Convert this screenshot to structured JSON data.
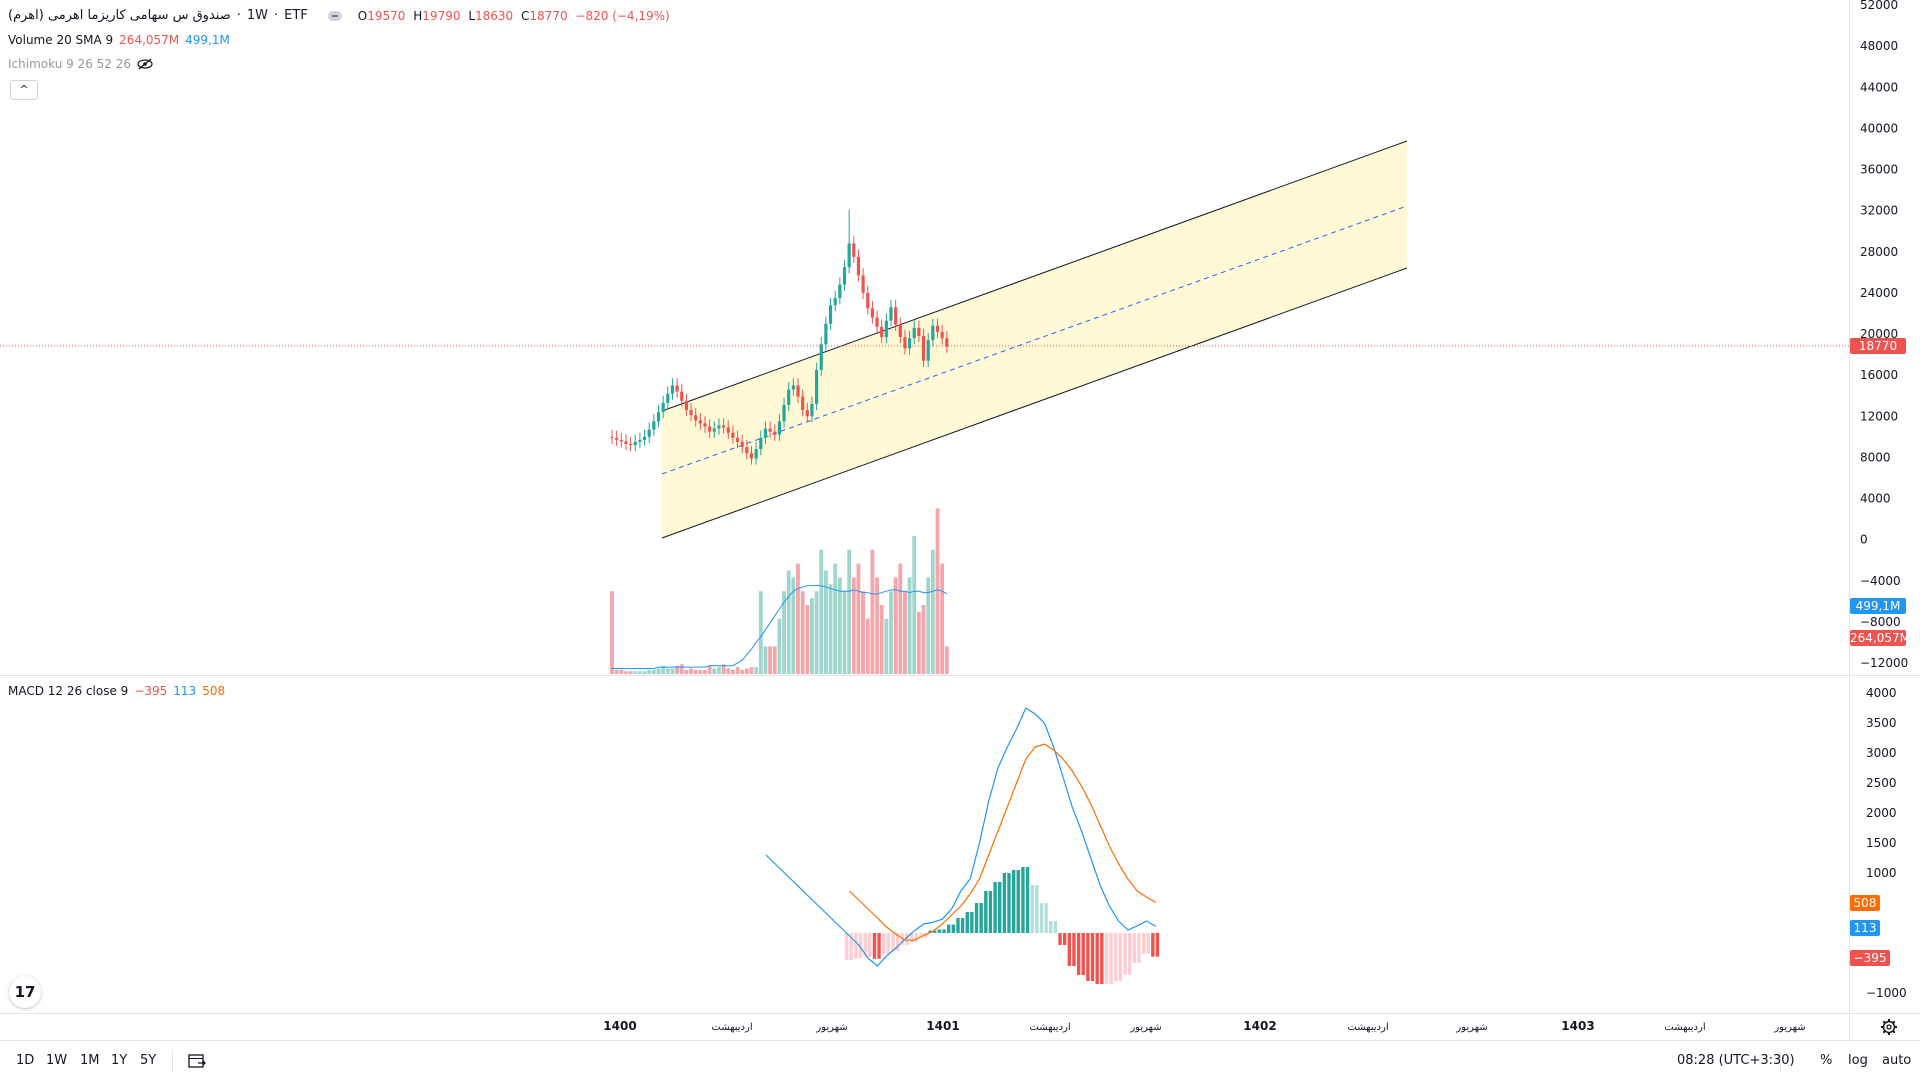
{
  "legend": {
    "symbol": "صندوق س سهامی کاریزما اهرمی (اهرم)",
    "sep": " · ",
    "interval": "1W",
    "exchange": "ETF",
    "ohlc": {
      "O_label": "O",
      "O": "19570",
      "H_label": "H",
      "H": "19790",
      "L_label": "L",
      "L": "18630",
      "C_label": "C",
      "C": "18770",
      "change": "−820 (−4,19%)"
    },
    "volume_name": "Volume 20 SMA 9",
    "volume_val": "264,057M",
    "volume_sma": "499,1M",
    "ichimoku": "Ichimoku 9 26 52 26",
    "macd_name": "MACD 12 26 close 9",
    "macd_hist": "−395",
    "macd_line": "113",
    "macd_signal": "508"
  },
  "colors": {
    "up": "#26a69a",
    "down": "#ef5350",
    "vol_up": "#9fd6cc",
    "vol_down": "#f6a5ab",
    "channel_fill": "#fff9d6",
    "macd_line": "#2196f3",
    "signal_line": "#ff6d00"
  },
  "price_axis": [
    "52000",
    "48000",
    "44000",
    "40000",
    "36000",
    "32000",
    "28000",
    "24000",
    "20000",
    "16000",
    "12000",
    "8000",
    "4000",
    "0",
    "−4000",
    "−8000",
    "−12000"
  ],
  "price_tags": {
    "last": "18770",
    "vol_sma": "499,1M",
    "vol": "264,057M"
  },
  "macd_axis": [
    "4000",
    "3500",
    "3000",
    "2500",
    "2000",
    "1500",
    "1000",
    "−1000"
  ],
  "macd_tags": {
    "signal": "508",
    "macd": "113",
    "hist": "−395"
  },
  "time_axis": [
    "1400",
    "اردیبهشت",
    "شهریور",
    "1401",
    "اردیبهشت",
    "شهریور",
    "1402",
    "اردیبهشت",
    "شهریور",
    "1403",
    "اردیبهشت",
    "شهریور"
  ],
  "bottom": {
    "timeframes": [
      "1D",
      "1W",
      "1M",
      "1Y",
      "5Y"
    ],
    "clock": "08:28 (UTC+3:30)",
    "percent": "%",
    "log": "log",
    "auto": "auto"
  },
  "logo_text": "17",
  "chart_data": [
    {
      "type": "candlestick",
      "title": "",
      "x_unit": "week index (1400 = week 0)",
      "ylim": [
        -14000,
        52000
      ],
      "last_price": 18770,
      "close": [
        9900,
        9700,
        9550,
        9300,
        9200,
        9500,
        9700,
        10000,
        10700,
        11500,
        12400,
        13300,
        14200,
        15000,
        14400,
        13500,
        12600,
        12100,
        11600,
        11300,
        11000,
        10500,
        10800,
        11100,
        10900,
        10400,
        9900,
        9500,
        9000,
        8400,
        7900,
        8800,
        9900,
        10800,
        10500,
        10200,
        11500,
        13100,
        14600,
        15000,
        13900,
        12600,
        12000,
        13200,
        16500,
        19000,
        21000,
        22800,
        23500,
        24800,
        26500,
        28800,
        27500,
        25700,
        24000,
        22500,
        21600,
        20700,
        19700,
        21300,
        22600,
        20900,
        19700,
        18600,
        19600,
        20600,
        19800,
        17400,
        19400,
        20800,
        20200,
        19570,
        18770
      ],
      "open": [
        10000,
        9900,
        9700,
        9550,
        9300,
        9200,
        9500,
        9700,
        10000,
        10700,
        11500,
        12400,
        13300,
        14200,
        15000,
        14400,
        13500,
        12600,
        12100,
        11600,
        11300,
        11000,
        10500,
        10800,
        11100,
        10900,
        10400,
        9900,
        9500,
        9000,
        8400,
        7900,
        8800,
        9900,
        10800,
        10500,
        10200,
        11500,
        13100,
        14600,
        15000,
        13900,
        12600,
        12000,
        13200,
        16500,
        19000,
        21000,
        22800,
        23500,
        24800,
        26500,
        28800,
        27500,
        25700,
        24000,
        22500,
        21600,
        20700,
        19700,
        21300,
        22600,
        20900,
        19700,
        18600,
        19600,
        20600,
        19800,
        17400,
        19400,
        20800,
        20200,
        19570
      ]
    },
    {
      "type": "bar",
      "title": "",
      "series": [
        {
          "name": "Volume 20",
          "values": [
            60,
            3,
            3,
            2,
            2,
            2,
            2,
            2,
            3,
            3,
            4,
            6,
            4,
            4,
            6,
            7,
            3,
            4,
            3,
            3,
            3,
            6,
            4,
            5,
            7,
            4,
            3,
            5,
            3,
            4,
            5,
            5,
            60,
            20,
            20,
            20,
            40,
            60,
            75,
            70,
            80,
            60,
            50,
            55,
            60,
            90,
            75,
            65,
            80,
            70,
            60,
            90,
            70,
            80,
            60,
            40,
            90,
            70,
            50,
            40,
            60,
            70,
            80,
            60,
            70,
            100,
            45,
            50,
            70,
            90,
            120,
            80,
            20
          ]
        },
        {
          "name": "SMA 9",
          "values": [
            4,
            4,
            4,
            4,
            4,
            4,
            4,
            4,
            4,
            4,
            5,
            5,
            5,
            5,
            5,
            5,
            5,
            5,
            5,
            5,
            5,
            6,
            6,
            6,
            6,
            6,
            6,
            8,
            10,
            14,
            18,
            23,
            27,
            32,
            37,
            42,
            47,
            52,
            56,
            60,
            62,
            63,
            64,
            64,
            64,
            64,
            63,
            62,
            61,
            60,
            60,
            60,
            61,
            60,
            59,
            59,
            58,
            58,
            59,
            60,
            61,
            61,
            60,
            60,
            59,
            60,
            60,
            59,
            59,
            60,
            61,
            60,
            58
          ]
        }
      ]
    },
    {
      "type": "bar",
      "title": "",
      "ylim": [
        -1300,
        4000
      ],
      "series": [
        {
          "name": "MACD",
          "values": [
            1300,
            1150,
            1000,
            850,
            700,
            550,
            400,
            250,
            100,
            -50,
            -200,
            -420,
            -550,
            -380,
            -250,
            -100,
            40,
            150,
            180,
            230,
            400,
            700,
            900,
            1500,
            2200,
            2750,
            3100,
            3400,
            3750,
            3650,
            3500,
            3100,
            2600,
            2100,
            1700,
            1250,
            800,
            450,
            200,
            50,
            120,
            200,
            113
          ]
        },
        {
          "name": "Signal",
          "values": [
            null,
            null,
            null,
            null,
            null,
            null,
            null,
            null,
            null,
            700,
            550,
            400,
            250,
            100,
            -20,
            -120,
            -120,
            -40,
            30,
            150,
            300,
            450,
            650,
            900,
            1300,
            1700,
            2100,
            2500,
            2900,
            3100,
            3150,
            3050,
            2900,
            2700,
            2450,
            2150,
            1800,
            1450,
            1150,
            900,
            700,
            600,
            508
          ]
        },
        {
          "name": "Histogram",
          "values": [
            null,
            null,
            null,
            null,
            null,
            null,
            null,
            null,
            null,
            -450,
            -420,
            -400,
            -430,
            -350,
            -300,
            -200,
            -150,
            -80,
            40,
            60,
            140,
            250,
            350,
            500,
            700,
            850,
            1000,
            1050,
            1100,
            800,
            500,
            200,
            -200,
            -550,
            -700,
            -800,
            -850,
            -850,
            -800,
            -700,
            -500,
            -350,
            -395
          ]
        }
      ]
    }
  ]
}
